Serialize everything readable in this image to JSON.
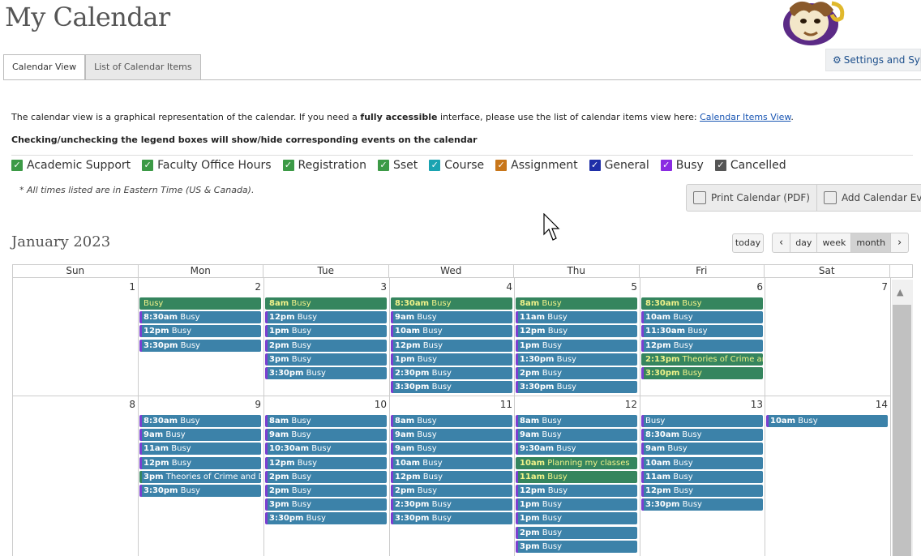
{
  "page_title": "My Calendar",
  "tabs": [
    {
      "label": "Calendar View",
      "active": true
    },
    {
      "label": "List of Calendar Items",
      "active": false
    }
  ],
  "settings_label": "Settings and Sync",
  "intro": {
    "before": "The calendar view is a graphical representation of the calendar. If you need a ",
    "bold": "fully accessible",
    "after": " interface, please use the list of calendar items view here: ",
    "link": "Calendar Items View",
    "end": "."
  },
  "legend_note": "Checking/unchecking the legend boxes will show/hide corresponding events on the calendar",
  "legend": [
    {
      "label": "Academic Support",
      "color": "#3c9a46"
    },
    {
      "label": "Faculty Office Hours",
      "color": "#3c9a46"
    },
    {
      "label": "Registration",
      "color": "#3c9a46"
    },
    {
      "label": "Sset",
      "color": "#3c9a46"
    },
    {
      "label": "Course",
      "color": "#1aa3b1"
    },
    {
      "label": "Assignment",
      "color": "#c8761a"
    },
    {
      "label": "General",
      "color": "#1f2fa8"
    },
    {
      "label": "Busy",
      "color": "#8a2be2"
    },
    {
      "label": "Cancelled",
      "color": "#555555"
    }
  ],
  "timezone_note": "* All times listed are in Eastern Time (US & Canada).",
  "buttons": {
    "print": "Print Calendar (PDF)",
    "add": "Add Calendar Event"
  },
  "month_title": "January 2023",
  "nav": {
    "today": "today",
    "prev": "‹",
    "day": "day",
    "week": "week",
    "month": "month",
    "next": "›"
  },
  "weekdays": [
    "Sun",
    "Mon",
    "Tue",
    "Wed",
    "Thu",
    "Fri",
    "Sat"
  ],
  "weeks": [
    {
      "days": [
        "1",
        "2",
        "3",
        "4",
        "5",
        "6",
        "7"
      ],
      "events": [
        [],
        [
          {
            "time": "",
            "title": "Busy",
            "style": "green"
          },
          {
            "time": "8:30am",
            "title": "Busy"
          },
          {
            "time": "12pm",
            "title": "Busy"
          },
          {
            "time": "3:30pm",
            "title": "Busy"
          }
        ],
        [
          {
            "time": "8am",
            "title": "Busy",
            "style": "green"
          },
          {
            "time": "12pm",
            "title": "Busy"
          },
          {
            "time": "1pm",
            "title": "Busy"
          },
          {
            "time": "2pm",
            "title": "Busy"
          },
          {
            "time": "3pm",
            "title": "Busy"
          },
          {
            "time": "3:30pm",
            "title": "Busy"
          }
        ],
        [
          {
            "time": "8:30am",
            "title": "Busy",
            "style": "green"
          },
          {
            "time": "9am",
            "title": "Busy"
          },
          {
            "time": "10am",
            "title": "Busy"
          },
          {
            "time": "12pm",
            "title": "Busy"
          },
          {
            "time": "1pm",
            "title": "Busy"
          },
          {
            "time": "2:30pm",
            "title": "Busy"
          },
          {
            "time": "3:30pm",
            "title": "Busy"
          }
        ],
        [
          {
            "time": "8am",
            "title": "Busy",
            "style": "green"
          },
          {
            "time": "11am",
            "title": "Busy"
          },
          {
            "time": "12pm",
            "title": "Busy"
          },
          {
            "time": "1pm",
            "title": "Busy"
          },
          {
            "time": "1:30pm",
            "title": "Busy"
          },
          {
            "time": "2pm",
            "title": "Busy"
          },
          {
            "time": "3:30pm",
            "title": "Busy"
          }
        ],
        [
          {
            "time": "8:30am",
            "title": "Busy",
            "style": "green"
          },
          {
            "time": "10am",
            "title": "Busy"
          },
          {
            "time": "11:30am",
            "title": "Busy"
          },
          {
            "time": "12pm",
            "title": "Busy"
          },
          {
            "time": "2:13pm",
            "title": "Theories of Crime and Del",
            "style": "green"
          },
          {
            "time": "3:30pm",
            "title": "Busy",
            "style": "green-purp"
          }
        ],
        []
      ]
    },
    {
      "days": [
        "8",
        "9",
        "10",
        "11",
        "12",
        "13",
        "14"
      ],
      "events": [
        [],
        [
          {
            "time": "8:30am",
            "title": "Busy"
          },
          {
            "time": "9am",
            "title": "Busy"
          },
          {
            "time": "11am",
            "title": "Busy"
          },
          {
            "time": "12pm",
            "title": "Busy"
          },
          {
            "time": "3pm",
            "title": "Theories of Crime and Delinq",
            "style": "green-text"
          },
          {
            "time": "3:30pm",
            "title": "Busy"
          }
        ],
        [
          {
            "time": "8am",
            "title": "Busy"
          },
          {
            "time": "9am",
            "title": "Busy"
          },
          {
            "time": "10:30am",
            "title": "Busy"
          },
          {
            "time": "12pm",
            "title": "Busy"
          },
          {
            "time": "2pm",
            "title": "Busy"
          },
          {
            "time": "2pm",
            "title": "Busy"
          },
          {
            "time": "3pm",
            "title": "Busy"
          },
          {
            "time": "3:30pm",
            "title": "Busy"
          }
        ],
        [
          {
            "time": "8am",
            "title": "Busy"
          },
          {
            "time": "9am",
            "title": "Busy"
          },
          {
            "time": "9am",
            "title": "Busy"
          },
          {
            "time": "10am",
            "title": "Busy"
          },
          {
            "time": "12pm",
            "title": "Busy"
          },
          {
            "time": "2pm",
            "title": "Busy"
          },
          {
            "time": "2:30pm",
            "title": "Busy"
          },
          {
            "time": "3:30pm",
            "title": "Busy"
          }
        ],
        [
          {
            "time": "8am",
            "title": "Busy"
          },
          {
            "time": "9am",
            "title": "Busy"
          },
          {
            "time": "9:30am",
            "title": "Busy"
          },
          {
            "time": "10am",
            "title": "Planning my classes",
            "style": "green"
          },
          {
            "time": "11am",
            "title": "Busy",
            "style": "green-purp"
          },
          {
            "time": "12pm",
            "title": "Busy"
          },
          {
            "time": "1pm",
            "title": "Busy"
          },
          {
            "time": "1pm",
            "title": "Busy"
          },
          {
            "time": "2pm",
            "title": "Busy"
          },
          {
            "time": "3pm",
            "title": "Busy"
          }
        ],
        [
          {
            "time": "",
            "title": "Busy"
          },
          {
            "time": "8:30am",
            "title": "Busy"
          },
          {
            "time": "9am",
            "title": "Busy"
          },
          {
            "time": "10am",
            "title": "Busy"
          },
          {
            "time": "11am",
            "title": "Busy"
          },
          {
            "time": "12pm",
            "title": "Busy"
          },
          {
            "time": "3:30pm",
            "title": "Busy"
          }
        ],
        [
          {
            "time": "10am",
            "title": "Busy"
          }
        ]
      ]
    }
  ]
}
